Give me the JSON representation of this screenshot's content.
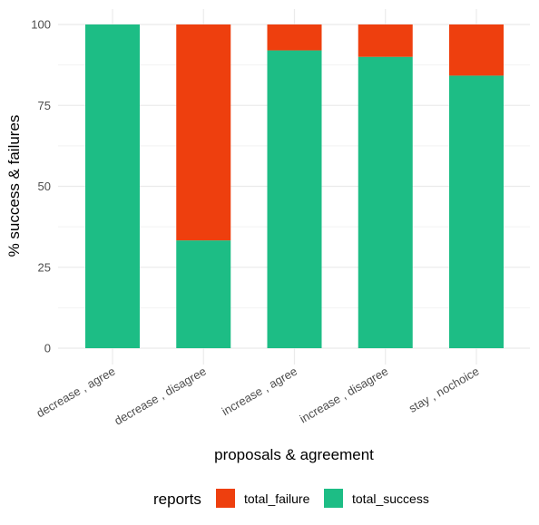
{
  "chart_data": {
    "type": "bar",
    "stacked": true,
    "categories": [
      "decrease , agree",
      "decrease , disagree",
      "increase , agree",
      "increase , disagree",
      "stay , nochoice"
    ],
    "series": [
      {
        "name": "total_success",
        "color": "#1dbd85",
        "values": [
          100,
          33.3,
          92,
          90,
          84.2
        ]
      },
      {
        "name": "total_failure",
        "color": "#ee3f0e",
        "values": [
          0,
          66.7,
          8,
          10,
          15.8
        ]
      }
    ],
    "xlabel": "proposals & agreement",
    "ylabel": "% success & failures",
    "ylim": [
      0,
      100
    ],
    "yticks": [
      0,
      25,
      50,
      75,
      100
    ],
    "grid": true,
    "legend": {
      "title": "reports",
      "position": "bottom",
      "entries": [
        {
          "label": "total_failure",
          "color": "#ee3f0e"
        },
        {
          "label": "total_success",
          "color": "#1dbd85"
        }
      ]
    }
  }
}
